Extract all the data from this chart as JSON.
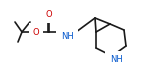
{
  "bg_color": "#ffffff",
  "line_color": "#1a1a1a",
  "atom_colors": {
    "O": "#cc0000",
    "N": "#0055cc"
  },
  "figsize": [
    1.42,
    0.7
  ],
  "dpi": 100,
  "lw": 1.2
}
